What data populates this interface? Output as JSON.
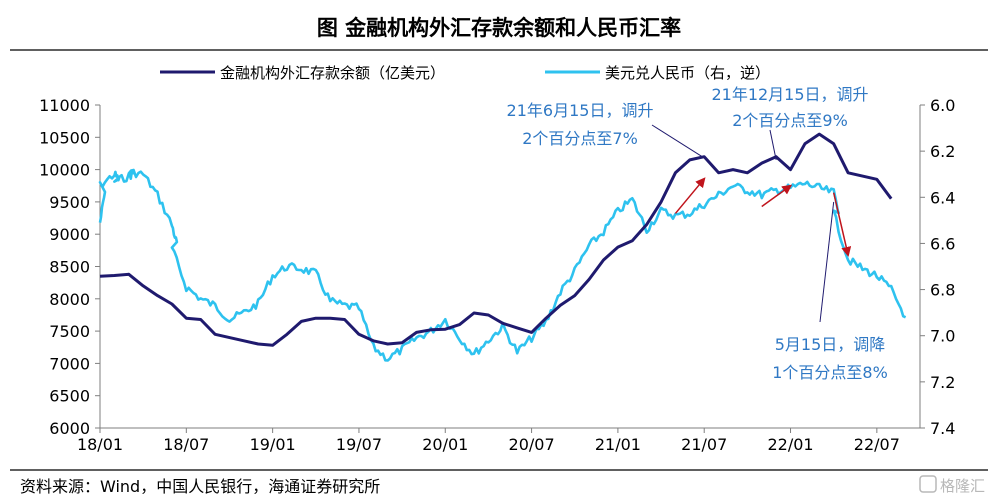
{
  "chart_data": {
    "type": "line",
    "title": "图    金融机构外汇存款余额和人民币汇率",
    "source": "资料来源：Wind，中国人民银行，海通证券研究所",
    "watermark": "格隆汇",
    "x_ticks": [
      "18/01",
      "18/07",
      "19/01",
      "19/07",
      "20/01",
      "20/07",
      "21/01",
      "21/07",
      "22/01",
      "22/07"
    ],
    "y_left": {
      "min": 6000,
      "max": 11000,
      "ticks": [
        11000,
        10500,
        10000,
        9500,
        9000,
        8500,
        8000,
        7500,
        7000,
        6500,
        6000
      ]
    },
    "y_right": {
      "min": 6.0,
      "max": 7.4,
      "inverted": true,
      "ticks": [
        "6.0",
        "6.2",
        "6.4",
        "6.6",
        "6.8",
        "7.0",
        "7.2",
        "7.4"
      ]
    },
    "legend_position": "top",
    "colors": {
      "deposits": "#1f1a6e",
      "fx": "#2ec2ef",
      "arrow": "#c0141c",
      "annotation": "#2f78c4",
      "axis": "#7f7f7f"
    },
    "series": [
      {
        "name": "金融机构外汇存款余额（亿美元）",
        "axis": "left",
        "x": [
          "2018-01",
          "2018-02",
          "2018-03",
          "2018-04",
          "2018-05",
          "2018-06",
          "2018-07",
          "2018-08",
          "2018-09",
          "2018-10",
          "2018-11",
          "2018-12",
          "2019-01",
          "2019-02",
          "2019-03",
          "2019-04",
          "2019-05",
          "2019-06",
          "2019-07",
          "2019-08",
          "2019-09",
          "2019-10",
          "2019-11",
          "2019-12",
          "2020-01",
          "2020-02",
          "2020-03",
          "2020-04",
          "2020-05",
          "2020-06",
          "2020-07",
          "2020-08",
          "2020-09",
          "2020-10",
          "2020-11",
          "2020-12",
          "2021-01",
          "2021-02",
          "2021-03",
          "2021-04",
          "2021-05",
          "2021-06",
          "2021-07",
          "2021-08",
          "2021-09",
          "2021-10",
          "2021-11",
          "2021-12",
          "2022-01",
          "2022-02",
          "2022-03",
          "2022-04",
          "2022-05",
          "2022-06",
          "2022-07",
          "2022-08"
        ],
        "values": [
          8350,
          8360,
          8380,
          8200,
          8050,
          7920,
          7700,
          7680,
          7450,
          7400,
          7350,
          7300,
          7280,
          7450,
          7650,
          7700,
          7700,
          7680,
          7450,
          7350,
          7300,
          7320,
          7480,
          7520,
          7530,
          7600,
          7780,
          7750,
          7620,
          7550,
          7480,
          7700,
          7900,
          8050,
          8300,
          8600,
          8800,
          8900,
          9150,
          9500,
          9950,
          10150,
          10200,
          9950,
          10000,
          9950,
          10100,
          10200,
          10000,
          10400,
          10550,
          10400,
          9950,
          9900,
          9850,
          9550
        ]
      },
      {
        "name": "美元兑人民币（右，逆）",
        "axis": "right",
        "x": [
          "2018-01",
          "2018-01",
          "2018-02",
          "2018-02",
          "2018-03",
          "2018-03",
          "2018-04",
          "2018-05",
          "2018-06",
          "2018-06",
          "2018-07",
          "2018-08",
          "2018-09",
          "2018-10",
          "2018-11",
          "2018-12",
          "2019-01",
          "2019-02",
          "2019-03",
          "2019-04",
          "2019-05",
          "2019-06",
          "2019-07",
          "2019-08",
          "2019-09",
          "2019-10",
          "2019-11",
          "2019-12",
          "2020-01",
          "2020-02",
          "2020-03",
          "2020-04",
          "2020-05",
          "2020-06",
          "2020-07",
          "2020-08",
          "2020-09",
          "2020-10",
          "2020-11",
          "2020-12",
          "2021-01",
          "2021-02",
          "2021-03",
          "2021-04",
          "2021-05",
          "2021-06",
          "2021-07",
          "2021-08",
          "2021-09",
          "2021-10",
          "2021-11",
          "2021-12",
          "2022-01",
          "2022-02",
          "2022-03",
          "2022-04",
          "2022-04",
          "2022-05",
          "2022-06",
          "2022-07",
          "2022-08",
          "2022-09"
        ],
        "values": [
          6.51,
          6.35,
          6.3,
          6.33,
          6.31,
          6.29,
          6.3,
          6.39,
          6.52,
          6.62,
          6.79,
          6.84,
          6.87,
          6.93,
          6.9,
          6.86,
          6.74,
          6.7,
          6.71,
          6.73,
          6.85,
          6.87,
          6.88,
          7.05,
          7.1,
          7.06,
          7.01,
          6.98,
          6.93,
          7.01,
          7.08,
          7.02,
          6.96,
          7.07,
          7.01,
          6.94,
          6.81,
          6.72,
          6.61,
          6.55,
          6.46,
          6.41,
          6.54,
          6.46,
          6.48,
          6.47,
          6.43,
          6.39,
          6.35,
          6.37,
          6.39,
          6.37,
          6.36,
          6.34,
          6.36,
          6.38,
          6.47,
          6.67,
          6.71,
          6.74,
          6.8,
          6.92
        ]
      }
    ],
    "annotations": [
      {
        "text": [
          "21年6月15日，调升",
          "2个百分点至7%"
        ]
      },
      {
        "text": [
          "21年12月15日，调升",
          "2个百分点至9%"
        ]
      },
      {
        "text": [
          "5月15日，调降",
          "1个百分点至8%"
        ]
      }
    ]
  }
}
